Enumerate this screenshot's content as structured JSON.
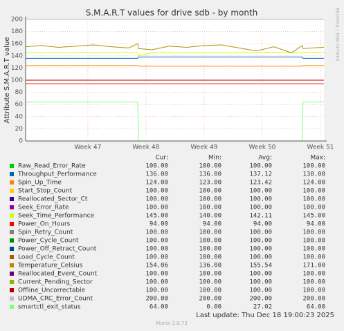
{
  "chart_data": {
    "type": "line",
    "title": "S.M.A.R.T values for drive sdb - by month",
    "y_label": "Attribute S.M.A.R.T value",
    "side_label": "RRDTOOL / TOBI OETIKER",
    "last_update": "Last update: Thu Dec 18 19:00:23 2025",
    "footer": "Munin 2.0.73",
    "columns": [
      "Cur:",
      "Min:",
      "Avg:",
      "Max:"
    ],
    "grid": true,
    "ylim": [
      0,
      200
    ],
    "yticks": [
      0,
      20,
      40,
      60,
      80,
      100,
      120,
      140,
      160,
      180,
      200
    ],
    "xlim": [
      45.93,
      51.06
    ],
    "xticks": [
      {
        "value": 47,
        "label": "Week 47"
      },
      {
        "value": 48,
        "label": "Week 48"
      },
      {
        "value": 49,
        "label": "Week 49"
      },
      {
        "value": 50,
        "label": "Week 50"
      },
      {
        "value": 51,
        "label": "Week 51"
      }
    ],
    "x": [
      45.93,
      46.2,
      46.5,
      46.8,
      47.1,
      47.4,
      47.7,
      47.86,
      47.87,
      48.1,
      48.4,
      48.7,
      49.0,
      49.3,
      49.6,
      49.9,
      50.2,
      50.5,
      50.69,
      50.7,
      51.06
    ],
    "series": [
      {
        "name": "Raw_Read_Error_Rate",
        "color": "#00cc00",
        "stats": [
          "100.00",
          "100.00",
          "100.00",
          "100.00"
        ],
        "values": [
          100,
          100,
          100,
          100,
          100,
          100,
          100,
          100,
          100,
          100,
          100,
          100,
          100,
          100,
          100,
          100,
          100,
          100,
          100,
          100,
          100
        ]
      },
      {
        "name": "Throughput_Performance",
        "color": "#0066b3",
        "stats": [
          "136.00",
          "136.00",
          "137.12",
          "138.00"
        ],
        "values": [
          136,
          136,
          136,
          136,
          136,
          136,
          136,
          136,
          138,
          138,
          138,
          138,
          138,
          138,
          138,
          138,
          138,
          138,
          138,
          136,
          136
        ]
      },
      {
        "name": "Spin_Up_Time",
        "color": "#ff8000",
        "stats": [
          "124.00",
          "123.00",
          "123.42",
          "124.00"
        ],
        "values": [
          124,
          124,
          124,
          124,
          124,
          124,
          124,
          124,
          123,
          123,
          123,
          123,
          123,
          123,
          123,
          123,
          123,
          123,
          123,
          124,
          124
        ]
      },
      {
        "name": "Start_Stop_Count",
        "color": "#ffcc00",
        "stats": [
          "100.00",
          "100.00",
          "100.00",
          "100.00"
        ],
        "values": [
          100,
          100,
          100,
          100,
          100,
          100,
          100,
          100,
          100,
          100,
          100,
          100,
          100,
          100,
          100,
          100,
          100,
          100,
          100,
          100,
          100
        ]
      },
      {
        "name": "Reallocated_Sector_Ct",
        "color": "#330099",
        "stats": [
          "100.00",
          "100.00",
          "100.00",
          "100.00"
        ],
        "values": [
          100,
          100,
          100,
          100,
          100,
          100,
          100,
          100,
          100,
          100,
          100,
          100,
          100,
          100,
          100,
          100,
          100,
          100,
          100,
          100,
          100
        ]
      },
      {
        "name": "Seek_Error_Rate",
        "color": "#990099",
        "stats": [
          "100.00",
          "100.00",
          "100.00",
          "100.00"
        ],
        "values": [
          100,
          100,
          100,
          100,
          100,
          100,
          100,
          100,
          100,
          100,
          100,
          100,
          100,
          100,
          100,
          100,
          100,
          100,
          100,
          100,
          100
        ]
      },
      {
        "name": "Seek_Time_Performance",
        "color": "#ccff00",
        "stats": [
          "145.00",
          "140.00",
          "142.11",
          "145.00"
        ],
        "values": [
          145,
          145,
          145,
          145,
          145,
          145,
          145,
          145,
          140,
          145,
          145,
          145,
          145,
          145,
          145,
          145,
          145,
          145,
          145,
          145,
          145
        ]
      },
      {
        "name": "Power_On_Hours",
        "color": "#ff0000",
        "stats": [
          "94.00",
          "94.00",
          "94.00",
          "94.00"
        ],
        "values": [
          94,
          94,
          94,
          94,
          94,
          94,
          94,
          94,
          94,
          94,
          94,
          94,
          94,
          94,
          94,
          94,
          94,
          94,
          94,
          94,
          94
        ]
      },
      {
        "name": "Spin_Retry_Count",
        "color": "#808080",
        "stats": [
          "100.00",
          "100.00",
          "100.00",
          "100.00"
        ],
        "values": [
          100,
          100,
          100,
          100,
          100,
          100,
          100,
          100,
          100,
          100,
          100,
          100,
          100,
          100,
          100,
          100,
          100,
          100,
          100,
          100,
          100
        ]
      },
      {
        "name": "Power_Cycle_Count",
        "color": "#008f00",
        "stats": [
          "100.00",
          "100.00",
          "100.00",
          "100.00"
        ],
        "values": [
          100,
          100,
          100,
          100,
          100,
          100,
          100,
          100,
          100,
          100,
          100,
          100,
          100,
          100,
          100,
          100,
          100,
          100,
          100,
          100,
          100
        ]
      },
      {
        "name": "Power_Off_Retract_Count",
        "color": "#00487d",
        "stats": [
          "100.00",
          "100.00",
          "100.00",
          "100.00"
        ],
        "values": [
          100,
          100,
          100,
          100,
          100,
          100,
          100,
          100,
          100,
          100,
          100,
          100,
          100,
          100,
          100,
          100,
          100,
          100,
          100,
          100,
          100
        ]
      },
      {
        "name": "Load_Cycle_Count",
        "color": "#b35a00",
        "stats": [
          "100.00",
          "100.00",
          "100.00",
          "100.00"
        ],
        "values": [
          100,
          100,
          100,
          100,
          100,
          100,
          100,
          100,
          100,
          100,
          100,
          100,
          100,
          100,
          100,
          100,
          100,
          100,
          100,
          100,
          100
        ]
      },
      {
        "name": "Temperature_Celsius",
        "color": "#b38f00",
        "stats": [
          "154.06",
          "136.00",
          "155.54",
          "171.00"
        ],
        "values": [
          155,
          157,
          154,
          156,
          158,
          155,
          153,
          160,
          152,
          150,
          156,
          154,
          157,
          158,
          153,
          148,
          155,
          145,
          157,
          152,
          154.06
        ]
      },
      {
        "name": "Reallocated_Event_Count",
        "color": "#6b006b",
        "stats": [
          "100.00",
          "100.00",
          "100.00",
          "100.00"
        ],
        "values": [
          100,
          100,
          100,
          100,
          100,
          100,
          100,
          100,
          100,
          100,
          100,
          100,
          100,
          100,
          100,
          100,
          100,
          100,
          100,
          100,
          100
        ]
      },
      {
        "name": "Current_Pending_Sector",
        "color": "#8fb300",
        "stats": [
          "100.00",
          "100.00",
          "100.00",
          "100.00"
        ],
        "values": [
          100,
          100,
          100,
          100,
          100,
          100,
          100,
          100,
          100,
          100,
          100,
          100,
          100,
          100,
          100,
          100,
          100,
          100,
          100,
          100,
          100
        ]
      },
      {
        "name": "Offline_Uncorrectable",
        "color": "#b30000",
        "stats": [
          "100.00",
          "100.00",
          "100.00",
          "100.00"
        ],
        "values": [
          100,
          100,
          100,
          100,
          100,
          100,
          100,
          100,
          100,
          100,
          100,
          100,
          100,
          100,
          100,
          100,
          100,
          100,
          100,
          100,
          100
        ]
      },
      {
        "name": "UDMA_CRC_Error_Count",
        "color": "#bebebe",
        "stats": [
          "200.00",
          "200.00",
          "200.00",
          "200.00"
        ],
        "values": [
          200,
          200,
          200,
          200,
          200,
          200,
          200,
          200,
          200,
          200,
          200,
          200,
          200,
          200,
          200,
          200,
          200,
          200,
          200,
          200,
          200
        ]
      },
      {
        "name": "smartctl_exit_status",
        "color": "#80ff80",
        "stats": [
          "64.00",
          "0.00",
          "27.02",
          "64.00"
        ],
        "values": [
          64,
          64,
          64,
          64,
          64,
          64,
          64,
          64,
          0,
          0,
          0,
          0,
          0,
          0,
          0,
          0,
          0,
          0,
          0,
          64,
          64
        ]
      }
    ]
  }
}
